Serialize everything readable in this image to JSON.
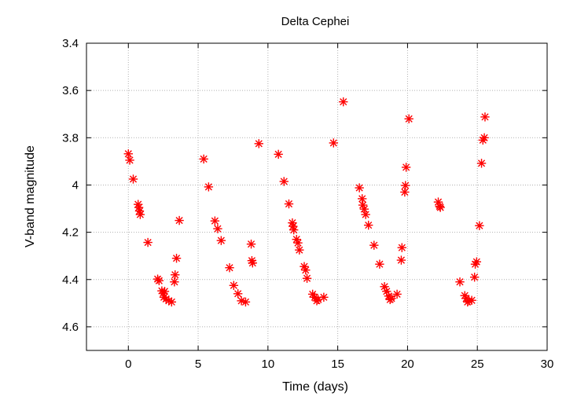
{
  "chart_data": {
    "type": "scatter",
    "title": "Delta Cephei",
    "xlabel": "Time (days)",
    "ylabel": "V-band magnitude",
    "xlim": [
      -3,
      30
    ],
    "ylim": [
      4.7,
      3.4
    ],
    "y_axis_inverted": true,
    "grid": true,
    "marker": "asterisk",
    "marker_color": "#ff0000",
    "x_ticks": [
      {
        "value": 0,
        "label": "0"
      },
      {
        "value": 5,
        "label": "5"
      },
      {
        "value": 10,
        "label": "10"
      },
      {
        "value": 15,
        "label": "15"
      },
      {
        "value": 20,
        "label": "20"
      },
      {
        "value": 25,
        "label": "25"
      },
      {
        "value": 30,
        "label": "30"
      }
    ],
    "y_ticks": [
      {
        "value": 3.4,
        "label": "3.4"
      },
      {
        "value": 3.6,
        "label": "3.6"
      },
      {
        "value": 3.8,
        "label": "3.8"
      },
      {
        "value": 4.0,
        "label": "4"
      },
      {
        "value": 4.2,
        "label": "4.2"
      },
      {
        "value": 4.4,
        "label": "4.4"
      },
      {
        "value": 4.6,
        "label": "4.6"
      }
    ],
    "series": [
      {
        "points": [
          [
            0.0,
            3.868
          ],
          [
            0.1,
            3.895
          ],
          [
            0.35,
            3.975
          ],
          [
            0.7,
            4.082
          ],
          [
            0.75,
            4.095
          ],
          [
            0.8,
            4.11
          ],
          [
            0.85,
            4.125
          ],
          [
            1.4,
            4.243
          ],
          [
            2.1,
            4.398
          ],
          [
            2.2,
            4.405
          ],
          [
            2.4,
            4.448
          ],
          [
            2.5,
            4.458
          ],
          [
            2.55,
            4.475
          ],
          [
            2.6,
            4.45
          ],
          [
            2.7,
            4.482
          ],
          [
            2.9,
            4.49
          ],
          [
            3.1,
            4.495
          ],
          [
            3.3,
            4.41
          ],
          [
            3.35,
            4.38
          ],
          [
            3.45,
            4.31
          ],
          [
            3.65,
            4.15
          ],
          [
            5.4,
            3.89
          ],
          [
            5.75,
            4.008
          ],
          [
            6.2,
            4.152
          ],
          [
            6.4,
            4.185
          ],
          [
            6.65,
            4.235
          ],
          [
            7.25,
            4.35
          ],
          [
            7.55,
            4.425
          ],
          [
            7.85,
            4.46
          ],
          [
            8.1,
            4.49
          ],
          [
            8.4,
            4.495
          ],
          [
            8.8,
            4.25
          ],
          [
            8.85,
            4.32
          ],
          [
            8.9,
            4.33
          ],
          [
            9.35,
            3.825
          ],
          [
            10.75,
            3.87
          ],
          [
            11.15,
            3.985
          ],
          [
            11.5,
            4.08
          ],
          [
            11.75,
            4.16
          ],
          [
            11.8,
            4.175
          ],
          [
            11.85,
            4.19
          ],
          [
            12.05,
            4.23
          ],
          [
            12.15,
            4.245
          ],
          [
            12.25,
            4.275
          ],
          [
            12.6,
            4.345
          ],
          [
            12.7,
            4.36
          ],
          [
            12.8,
            4.395
          ],
          [
            13.2,
            4.462
          ],
          [
            13.35,
            4.475
          ],
          [
            13.5,
            4.49
          ],
          [
            13.6,
            4.485
          ],
          [
            14.0,
            4.475
          ],
          [
            14.7,
            3.822
          ],
          [
            15.4,
            3.648
          ],
          [
            16.55,
            4.012
          ],
          [
            16.75,
            4.058
          ],
          [
            16.8,
            4.085
          ],
          [
            16.9,
            4.102
          ],
          [
            17.0,
            4.125
          ],
          [
            17.2,
            4.17
          ],
          [
            17.6,
            4.255
          ],
          [
            18.0,
            4.335
          ],
          [
            18.35,
            4.43
          ],
          [
            18.5,
            4.45
          ],
          [
            18.65,
            4.47
          ],
          [
            18.75,
            4.485
          ],
          [
            18.85,
            4.48
          ],
          [
            19.25,
            4.462
          ],
          [
            19.55,
            4.318
          ],
          [
            19.6,
            4.265
          ],
          [
            19.8,
            4.03
          ],
          [
            19.85,
            4.002
          ],
          [
            19.9,
            3.925
          ],
          [
            20.1,
            3.72
          ],
          [
            22.2,
            4.072
          ],
          [
            22.3,
            4.09
          ],
          [
            22.35,
            4.095
          ],
          [
            23.75,
            4.41
          ],
          [
            24.1,
            4.468
          ],
          [
            24.2,
            4.48
          ],
          [
            24.3,
            4.495
          ],
          [
            24.4,
            4.49
          ],
          [
            24.6,
            4.488
          ],
          [
            24.8,
            4.39
          ],
          [
            24.85,
            4.335
          ],
          [
            24.95,
            4.325
          ],
          [
            25.15,
            4.172
          ],
          [
            25.3,
            3.908
          ],
          [
            25.4,
            3.81
          ],
          [
            25.5,
            3.8
          ],
          [
            25.55,
            3.712
          ]
        ]
      }
    ]
  }
}
